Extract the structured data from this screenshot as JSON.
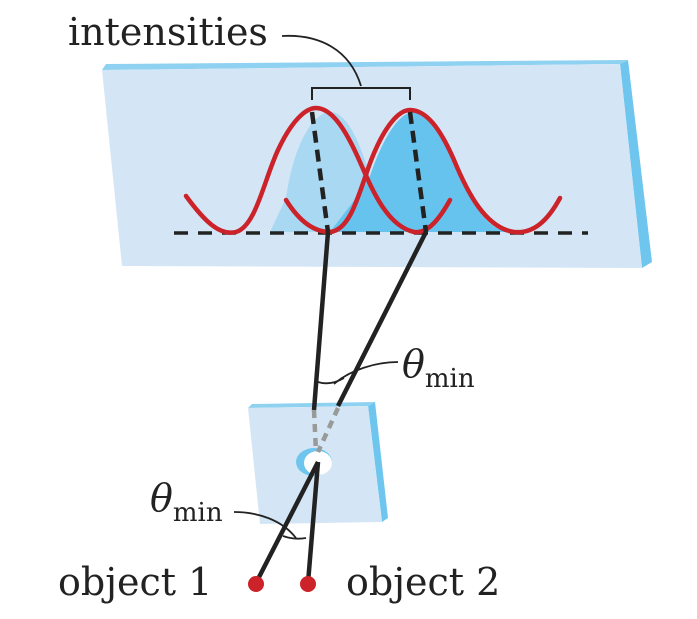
{
  "labels": {
    "intensities": "intensities",
    "object1": "object 1",
    "object2": "object 2",
    "theta_symbol": "θ",
    "theta_subscript": "min"
  },
  "colors": {
    "screen_face": "#d4e6f5",
    "screen_edge": "#6ec6ef",
    "curve": "#cc2229",
    "fill_light": "#a9d8f2",
    "fill_dark": "#66c3ee",
    "ray": "#222222",
    "dash_gray": "#999999",
    "object_dot": "#cc2229"
  }
}
